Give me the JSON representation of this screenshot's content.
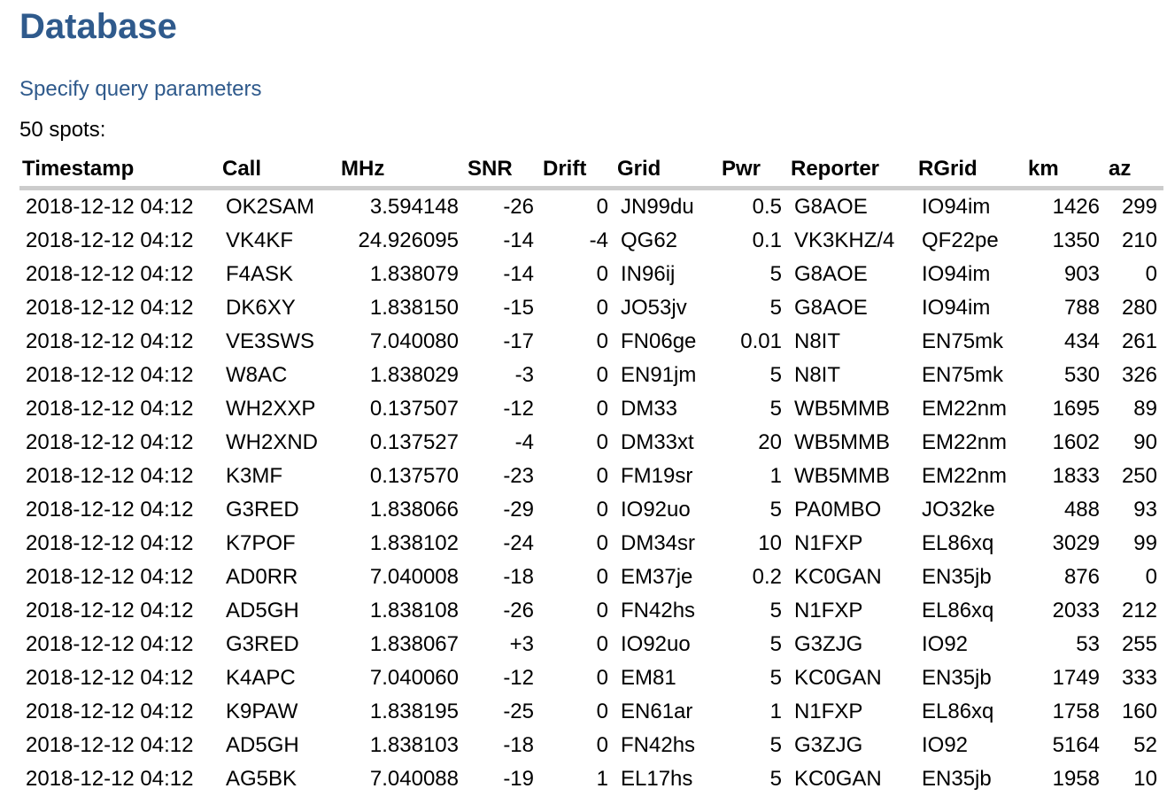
{
  "page": {
    "title": "Database",
    "query_link": "Specify query parameters",
    "spot_count": "50 spots:"
  },
  "table": {
    "headers": {
      "timestamp": "Timestamp",
      "call": "Call",
      "mhz": "MHz",
      "snr": "SNR",
      "drift": "Drift",
      "grid": "Grid",
      "pwr": "Pwr",
      "reporter": "Reporter",
      "rgrid": "RGrid",
      "km": "km",
      "az": "az"
    },
    "rows": [
      {
        "timestamp": "2018-12-12 04:12",
        "call": "OK2SAM",
        "mhz": "3.594148",
        "snr": "-26",
        "drift": "0",
        "grid": "JN99du",
        "pwr": "0.5",
        "reporter": "G8AOE",
        "rgrid": "IO94im",
        "km": "1426",
        "az": "299"
      },
      {
        "timestamp": "2018-12-12 04:12",
        "call": "VK4KF",
        "mhz": "24.926095",
        "snr": "-14",
        "drift": "-4",
        "grid": "QG62",
        "pwr": "0.1",
        "reporter": "VK3KHZ/4",
        "rgrid": "QF22pe",
        "km": "1350",
        "az": "210"
      },
      {
        "timestamp": "2018-12-12 04:12",
        "call": "F4ASK",
        "mhz": "1.838079",
        "snr": "-14",
        "drift": "0",
        "grid": "IN96ij",
        "pwr": "5",
        "reporter": "G8AOE",
        "rgrid": "IO94im",
        "km": "903",
        "az": "0"
      },
      {
        "timestamp": "2018-12-12 04:12",
        "call": "DK6XY",
        "mhz": "1.838150",
        "snr": "-15",
        "drift": "0",
        "grid": "JO53jv",
        "pwr": "5",
        "reporter": "G8AOE",
        "rgrid": "IO94im",
        "km": "788",
        "az": "280"
      },
      {
        "timestamp": "2018-12-12 04:12",
        "call": "VE3SWS",
        "mhz": "7.040080",
        "snr": "-17",
        "drift": "0",
        "grid": "FN06ge",
        "pwr": "0.01",
        "reporter": "N8IT",
        "rgrid": "EN75mk",
        "km": "434",
        "az": "261"
      },
      {
        "timestamp": "2018-12-12 04:12",
        "call": "W8AC",
        "mhz": "1.838029",
        "snr": "-3",
        "drift": "0",
        "grid": "EN91jm",
        "pwr": "5",
        "reporter": "N8IT",
        "rgrid": "EN75mk",
        "km": "530",
        "az": "326"
      },
      {
        "timestamp": "2018-12-12 04:12",
        "call": "WH2XXP",
        "mhz": "0.137507",
        "snr": "-12",
        "drift": "0",
        "grid": "DM33",
        "pwr": "5",
        "reporter": "WB5MMB",
        "rgrid": "EM22nm",
        "km": "1695",
        "az": "89"
      },
      {
        "timestamp": "2018-12-12 04:12",
        "call": "WH2XND",
        "mhz": "0.137527",
        "snr": "-4",
        "drift": "0",
        "grid": "DM33xt",
        "pwr": "20",
        "reporter": "WB5MMB",
        "rgrid": "EM22nm",
        "km": "1602",
        "az": "90"
      },
      {
        "timestamp": "2018-12-12 04:12",
        "call": "K3MF",
        "mhz": "0.137570",
        "snr": "-23",
        "drift": "0",
        "grid": "FM19sr",
        "pwr": "1",
        "reporter": "WB5MMB",
        "rgrid": "EM22nm",
        "km": "1833",
        "az": "250"
      },
      {
        "timestamp": "2018-12-12 04:12",
        "call": "G3RED",
        "mhz": "1.838066",
        "snr": "-29",
        "drift": "0",
        "grid": "IO92uo",
        "pwr": "5",
        "reporter": "PA0MBO",
        "rgrid": "JO32ke",
        "km": "488",
        "az": "93"
      },
      {
        "timestamp": "2018-12-12 04:12",
        "call": "K7POF",
        "mhz": "1.838102",
        "snr": "-24",
        "drift": "0",
        "grid": "DM34sr",
        "pwr": "10",
        "reporter": "N1FXP",
        "rgrid": "EL86xq",
        "km": "3029",
        "az": "99"
      },
      {
        "timestamp": "2018-12-12 04:12",
        "call": "AD0RR",
        "mhz": "7.040008",
        "snr": "-18",
        "drift": "0",
        "grid": "EM37je",
        "pwr": "0.2",
        "reporter": "KC0GAN",
        "rgrid": "EN35jb",
        "km": "876",
        "az": "0"
      },
      {
        "timestamp": "2018-12-12 04:12",
        "call": "AD5GH",
        "mhz": "1.838108",
        "snr": "-26",
        "drift": "0",
        "grid": "FN42hs",
        "pwr": "5",
        "reporter": "N1FXP",
        "rgrid": "EL86xq",
        "km": "2033",
        "az": "212"
      },
      {
        "timestamp": "2018-12-12 04:12",
        "call": "G3RED",
        "mhz": "1.838067",
        "snr": "+3",
        "drift": "0",
        "grid": "IO92uo",
        "pwr": "5",
        "reporter": "G3ZJG",
        "rgrid": "IO92",
        "km": "53",
        "az": "255"
      },
      {
        "timestamp": "2018-12-12 04:12",
        "call": "K4APC",
        "mhz": "7.040060",
        "snr": "-12",
        "drift": "0",
        "grid": "EM81",
        "pwr": "5",
        "reporter": "KC0GAN",
        "rgrid": "EN35jb",
        "km": "1749",
        "az": "333"
      },
      {
        "timestamp": "2018-12-12 04:12",
        "call": "K9PAW",
        "mhz": "1.838195",
        "snr": "-25",
        "drift": "0",
        "grid": "EN61ar",
        "pwr": "1",
        "reporter": "N1FXP",
        "rgrid": "EL86xq",
        "km": "1758",
        "az": "160"
      },
      {
        "timestamp": "2018-12-12 04:12",
        "call": "AD5GH",
        "mhz": "1.838103",
        "snr": "-18",
        "drift": "0",
        "grid": "FN42hs",
        "pwr": "5",
        "reporter": "G3ZJG",
        "rgrid": "IO92",
        "km": "5164",
        "az": "52"
      },
      {
        "timestamp": "2018-12-12 04:12",
        "call": "AG5BK",
        "mhz": "7.040088",
        "snr": "-19",
        "drift": "1",
        "grid": "EL17hs",
        "pwr": "5",
        "reporter": "KC0GAN",
        "rgrid": "EN35jb",
        "km": "1958",
        "az": "10"
      }
    ]
  },
  "colors": {
    "heading": "#2f5a8c",
    "link": "#2f5a8c",
    "header_rule": "#cccccc"
  }
}
